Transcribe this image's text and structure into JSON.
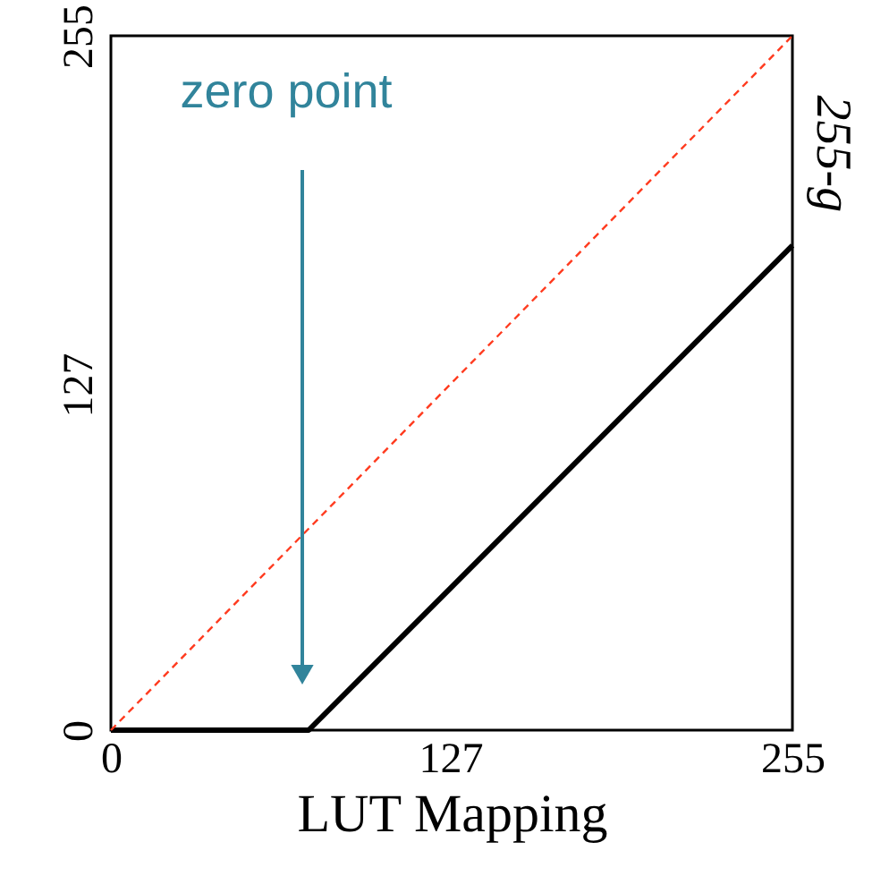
{
  "chart_data": {
    "type": "line",
    "xlabel": "LUT Mapping",
    "ylabel": "255-g",
    "xlim": [
      0,
      255
    ],
    "ylim": [
      0,
      255
    ],
    "xticks": [
      0,
      127,
      255
    ],
    "yticks": [
      0,
      127,
      255
    ],
    "series": [
      {
        "x": [
          0,
          74,
          255
        ],
        "values": [
          0,
          0,
          178
        ],
        "color": "#000000",
        "line_style": "solid"
      },
      {
        "x": [
          0,
          255
        ],
        "values": [
          0,
          255
        ],
        "color": "#ff3b1f",
        "line_style": "dashed"
      }
    ],
    "annotations": [
      "zero point"
    ],
    "grid": false,
    "marker": "none"
  }
}
